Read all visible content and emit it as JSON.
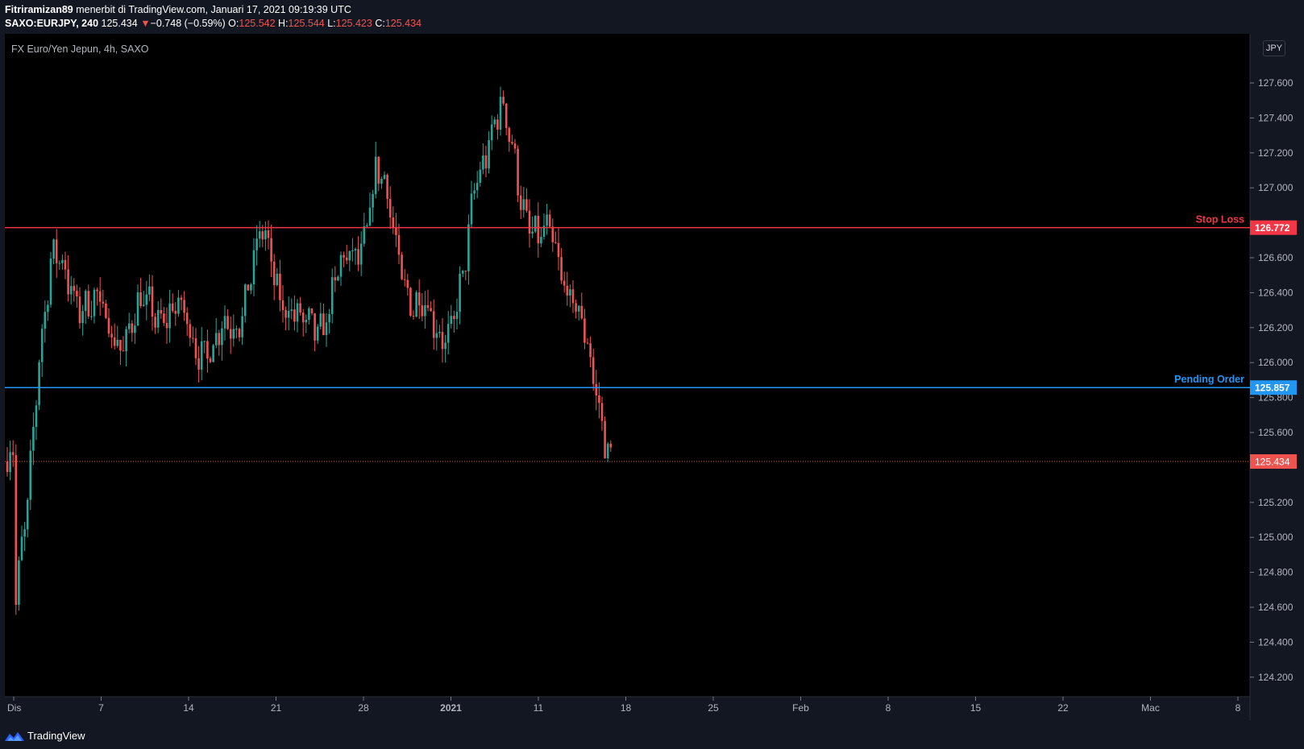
{
  "header": {
    "line1": {
      "author": "Fitriramizan89",
      "rest": " menerbit di TradingView.com, Januari 17, 2021 09:19:39 UTC"
    },
    "line2": {
      "symbol": "SAXO:EURJPY, 240",
      "price": "125.434",
      "arrow": "▼",
      "change": "−0.748 (−0.59%)",
      "o_label": "O:",
      "o_value": "125.542",
      "h_label": "H:",
      "h_value": "125.544",
      "l_label": "L:",
      "l_value": "125.423",
      "c_label": "C:",
      "c_value": "125.434"
    }
  },
  "chart": {
    "legend": "FX Euro/Yen Jepun, 4h, SAXO",
    "currency": "JPY",
    "price_ticks": [
      "127.600",
      "127.400",
      "127.200",
      "127.000",
      "126.600",
      "126.400",
      "126.200",
      "126.000",
      "125.800",
      "125.600",
      "125.200",
      "125.000",
      "124.800",
      "124.600",
      "124.400",
      "124.200"
    ],
    "time_labels": [
      {
        "label": "Dis",
        "bold": false
      },
      {
        "label": "7",
        "bold": false
      },
      {
        "label": "14",
        "bold": false
      },
      {
        "label": "21",
        "bold": false
      },
      {
        "label": "28",
        "bold": false
      },
      {
        "label": "2021",
        "bold": true
      },
      {
        "label": "11",
        "bold": false
      },
      {
        "label": "18",
        "bold": false
      },
      {
        "label": "25",
        "bold": false
      },
      {
        "label": "Feb",
        "bold": false
      },
      {
        "label": "8",
        "bold": false
      },
      {
        "label": "15",
        "bold": false
      },
      {
        "label": "22",
        "bold": false
      },
      {
        "label": "Mac",
        "bold": false
      },
      {
        "label": "8",
        "bold": false
      }
    ],
    "lines": [
      {
        "name": "stop-loss",
        "label": "Stop Loss",
        "price": 126.772,
        "price_label": "126.772",
        "color": "#f23645"
      },
      {
        "name": "pending-order",
        "label": "Pending Order",
        "price": 125.857,
        "price_label": "125.857",
        "color": "#2196f3"
      }
    ],
    "last_price": {
      "price": 125.434,
      "label": "125.434",
      "color": "#ef5350"
    },
    "colors": {
      "up": "#26a69a",
      "down": "#ef5350",
      "background": "#000000",
      "panel": "#131722"
    }
  },
  "chart_data": {
    "type": "candlestick",
    "title": "FX Euro/Yen Jepun, 4h, SAXO",
    "ylim": [
      124.0,
      127.85
    ],
    "x_range": [
      "2020-11-30",
      "2021-03-08"
    ],
    "trend_close": [
      {
        "x": "2020-11-30",
        "y": 124.45
      },
      {
        "x": "2020-12-01",
        "y": 125.1
      },
      {
        "x": "2020-12-02",
        "y": 126.1
      },
      {
        "x": "2020-12-03",
        "y": 126.55
      },
      {
        "x": "2020-12-04",
        "y": 126.5
      },
      {
        "x": "2020-12-07",
        "y": 126.25
      },
      {
        "x": "2020-12-09",
        "y": 126.15
      },
      {
        "x": "2020-12-11",
        "y": 126.35
      },
      {
        "x": "2020-12-14",
        "y": 126.2
      },
      {
        "x": "2020-12-16",
        "y": 126.05
      },
      {
        "x": "2020-12-18",
        "y": 126.3
      },
      {
        "x": "2020-12-20",
        "y": 126.7
      },
      {
        "x": "2020-12-21",
        "y": 126.5
      },
      {
        "x": "2020-12-23",
        "y": 126.15
      },
      {
        "x": "2020-12-25",
        "y": 126.3
      },
      {
        "x": "2020-12-28",
        "y": 126.75
      },
      {
        "x": "2020-12-29",
        "y": 127.05
      },
      {
        "x": "2020-12-30",
        "y": 126.9
      },
      {
        "x": "2020-12-31",
        "y": 126.6
      },
      {
        "x": "2021-01-01",
        "y": 126.3
      },
      {
        "x": "2021-01-04",
        "y": 126.2
      },
      {
        "x": "2021-01-05",
        "y": 126.4
      },
      {
        "x": "2021-01-06",
        "y": 127.1
      },
      {
        "x": "2021-01-07",
        "y": 127.3
      },
      {
        "x": "2021-01-08",
        "y": 127.4
      },
      {
        "x": "2021-01-09",
        "y": 127.2
      },
      {
        "x": "2021-01-10",
        "y": 126.9
      },
      {
        "x": "2021-01-11",
        "y": 126.65
      },
      {
        "x": "2021-01-12",
        "y": 126.7
      },
      {
        "x": "2021-01-13",
        "y": 126.55
      },
      {
        "x": "2021-01-14",
        "y": 126.3
      },
      {
        "x": "2021-01-15",
        "y": 126.0
      },
      {
        "x": "2021-01-16",
        "y": 125.75
      },
      {
        "x": "2021-01-17",
        "y": 125.434
      }
    ]
  }
}
